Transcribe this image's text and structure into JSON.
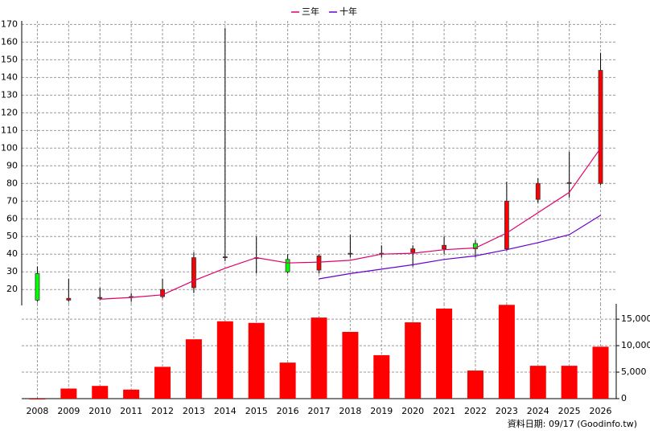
{
  "chart_data": {
    "type": "candlestick",
    "categories": [
      "2008",
      "2009",
      "2010",
      "2011",
      "2012",
      "2013",
      "2014",
      "2015",
      "2016",
      "2017",
      "2018",
      "2019",
      "2020",
      "2021",
      "2022",
      "2023",
      "2024",
      "2025",
      "2026"
    ],
    "open": [
      29,
      14,
      15,
      15.5,
      16,
      21,
      38,
      38,
      37,
      31,
      40,
      40,
      41,
      43,
      46,
      43,
      71,
      80,
      80
    ],
    "high": [
      33,
      26,
      21,
      18,
      26,
      41,
      168,
      50,
      40,
      40,
      51,
      45,
      45,
      50,
      48,
      81,
      83,
      98,
      154
    ],
    "low": [
      13,
      13,
      14,
      13,
      15,
      18,
      36,
      29,
      29,
      29,
      38,
      38,
      33,
      40,
      38,
      42,
      69,
      72,
      79
    ],
    "close": [
      14,
      15,
      15.5,
      16,
      20,
      38,
      38.5,
      38,
      30,
      39,
      40.5,
      40.5,
      43,
      45,
      43,
      70,
      80,
      80.5,
      144
    ],
    "up_color": "#ff0000",
    "down_color": "#00ff00",
    "ylim": [
      11,
      172
    ],
    "yticks": [
      20,
      30,
      40,
      50,
      60,
      70,
      80,
      90,
      100,
      110,
      120,
      130,
      140,
      150,
      160,
      170
    ],
    "grid": true,
    "series": [
      {
        "name": "三年",
        "color": "#e0006a",
        "values": [
          null,
          null,
          14.5,
          15.5,
          17,
          25,
          32,
          38,
          35,
          35.5,
          36.5,
          40,
          40.5,
          42.5,
          43.5,
          52,
          63.5,
          75,
          100
        ]
      },
      {
        "name": "十年",
        "color": "#6a00d0",
        "values": [
          null,
          null,
          null,
          null,
          null,
          null,
          null,
          null,
          null,
          26,
          29,
          31.5,
          34,
          37,
          39,
          42.5,
          46.5,
          51,
          62
        ]
      }
    ],
    "volume": {
      "color": "#ff0000",
      "values": [
        0,
        1900,
        2400,
        1700,
        6000,
        11200,
        14600,
        14300,
        6800,
        15300,
        12600,
        8200,
        14400,
        17000,
        5300,
        17700,
        6200,
        6200,
        9800
      ]
    },
    "y2lim": [
      0,
      17900
    ],
    "y2ticks": [
      0,
      {
        "value": 5000,
        "label": "5,000"
      },
      {
        "value": 10000,
        "label": "10,000"
      },
      {
        "value": 15000,
        "label": "15,000"
      }
    ],
    "footer": "資料日期: 09/17 (Goodinfo.tw)"
  }
}
